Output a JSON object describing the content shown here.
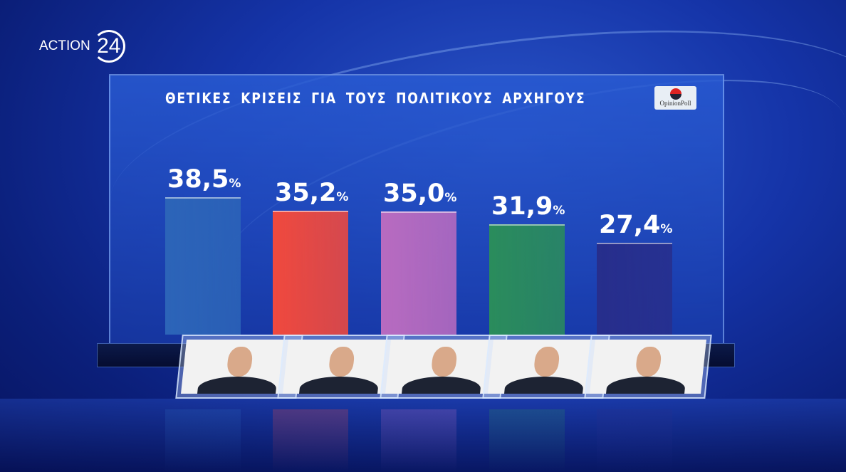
{
  "logo": {
    "brand": "ACTION",
    "number": "24"
  },
  "poll_logo": {
    "text": "OpinionPoll"
  },
  "chart_data": {
    "type": "bar",
    "title": "ΘΕΤΙΚΕΣ ΚΡΙΣΕΙΣ ΓΙΑ ΤΟΥΣ ΠΟΛΙΤΙΚΟΥΣ ΑΡΧΗΓΟΥΣ",
    "categories": [
      "",
      "",
      "",
      "",
      ""
    ],
    "values": [
      38.5,
      35.2,
      35.0,
      31.9,
      27.4
    ],
    "labels": [
      "38,5",
      "35,2",
      "35,0",
      "31,9",
      "27,4"
    ],
    "unit": "%",
    "colors": [
      "#2c64b8",
      "#f0493e",
      "#b86bc0",
      "#2a8c5c",
      "#272e8c"
    ],
    "xlabel": "",
    "ylabel": "",
    "ylim": [
      5,
      40
    ],
    "grid": false,
    "legend": "none"
  }
}
